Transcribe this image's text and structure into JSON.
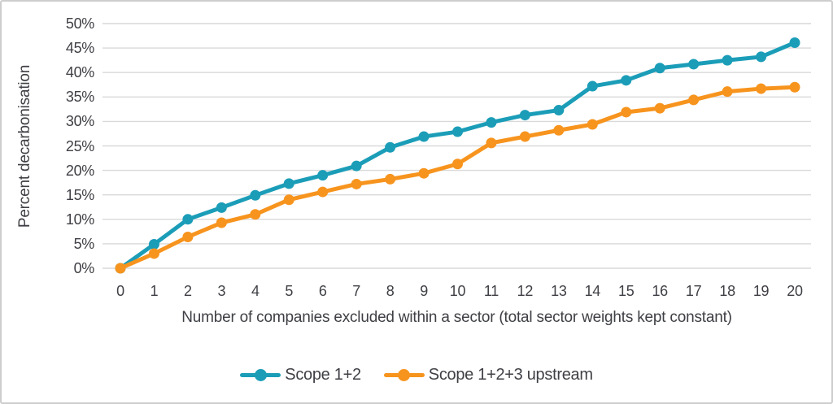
{
  "chart_data": {
    "type": "line",
    "x": [
      0,
      1,
      2,
      3,
      4,
      5,
      6,
      7,
      8,
      9,
      10,
      11,
      12,
      13,
      14,
      15,
      16,
      17,
      18,
      19,
      20
    ],
    "xtick_labels": [
      "0",
      "1",
      "2",
      "3",
      "4",
      "5",
      "6",
      "7",
      "8",
      "9",
      "10",
      "11",
      "12",
      "13",
      "14",
      "15",
      "16",
      "17",
      "18",
      "19",
      "20"
    ],
    "series": [
      {
        "name": "Scope 1+2",
        "color": "#1B9DB8",
        "values": [
          0,
          4.9,
          10.0,
          12.4,
          14.9,
          17.3,
          19.0,
          20.9,
          24.7,
          26.9,
          27.9,
          29.8,
          31.3,
          32.3,
          37.2,
          38.4,
          40.9,
          41.7,
          42.5,
          43.2,
          46.1
        ]
      },
      {
        "name": "Scope 1+2+3 upstream",
        "color": "#F7941E",
        "values": [
          0,
          3.0,
          6.4,
          9.3,
          11.0,
          14.0,
          15.6,
          17.2,
          18.2,
          19.4,
          21.3,
          25.6,
          26.9,
          28.2,
          29.4,
          31.9,
          32.7,
          34.4,
          36.1,
          36.7,
          37.0
        ]
      }
    ],
    "title": "",
    "xlabel": "Number of companies excluded within a sector (total sector weights kept constant)",
    "ylabel": "Percent decarbonisation",
    "ylim": [
      0,
      50
    ],
    "ytick_step": 5,
    "ytick_labels": [
      "0%",
      "5%",
      "10%",
      "15%",
      "20%",
      "25%",
      "30%",
      "35%",
      "40%",
      "45%",
      "50%"
    ],
    "grid": "horizontal",
    "legend_position": "bottom",
    "marker": "circle",
    "gridline_color": "#D9D9D9",
    "text_color": "#3F4045",
    "border_color": "#CDCDCD",
    "background_color": "#FFFFFF"
  }
}
